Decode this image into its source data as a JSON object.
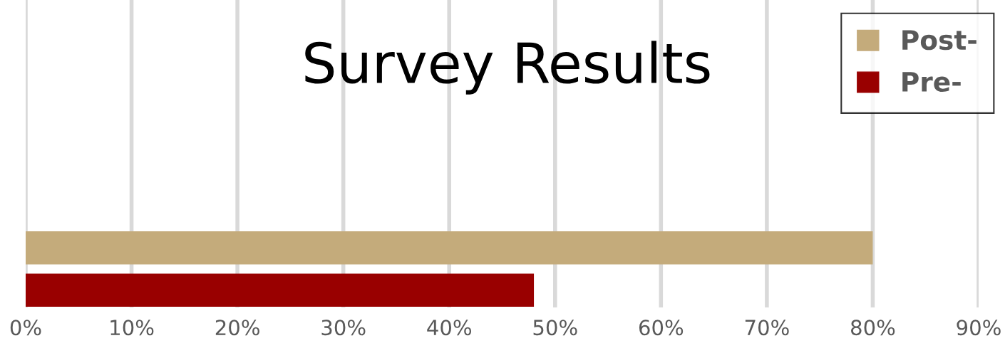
{
  "chart_data": {
    "type": "bar",
    "orientation": "horizontal",
    "title": "Survey Results",
    "categories": [
      null,
      null,
      null,
      null
    ],
    "series": [
      {
        "name": "Post-",
        "color": "#c4ab7b",
        "values": [
          null,
          null,
          null,
          80
        ]
      },
      {
        "name": "Pre-",
        "color": "#990000",
        "values": [
          null,
          null,
          null,
          48
        ]
      }
    ],
    "xlim": [
      0,
      90
    ],
    "xticks": [
      {
        "value": 0,
        "label": "0%"
      },
      {
        "value": 10,
        "label": "10%"
      },
      {
        "value": 20,
        "label": "20%"
      },
      {
        "value": 30,
        "label": "30%"
      },
      {
        "value": 40,
        "label": "40%"
      },
      {
        "value": 50,
        "label": "50%"
      },
      {
        "value": 60,
        "label": "60%"
      },
      {
        "value": 70,
        "label": "70%"
      },
      {
        "value": 80,
        "label": "80%"
      },
      {
        "value": 90,
        "label": "90%"
      }
    ],
    "grid": "x",
    "legend": "top right",
    "tick_labels": "x"
  }
}
